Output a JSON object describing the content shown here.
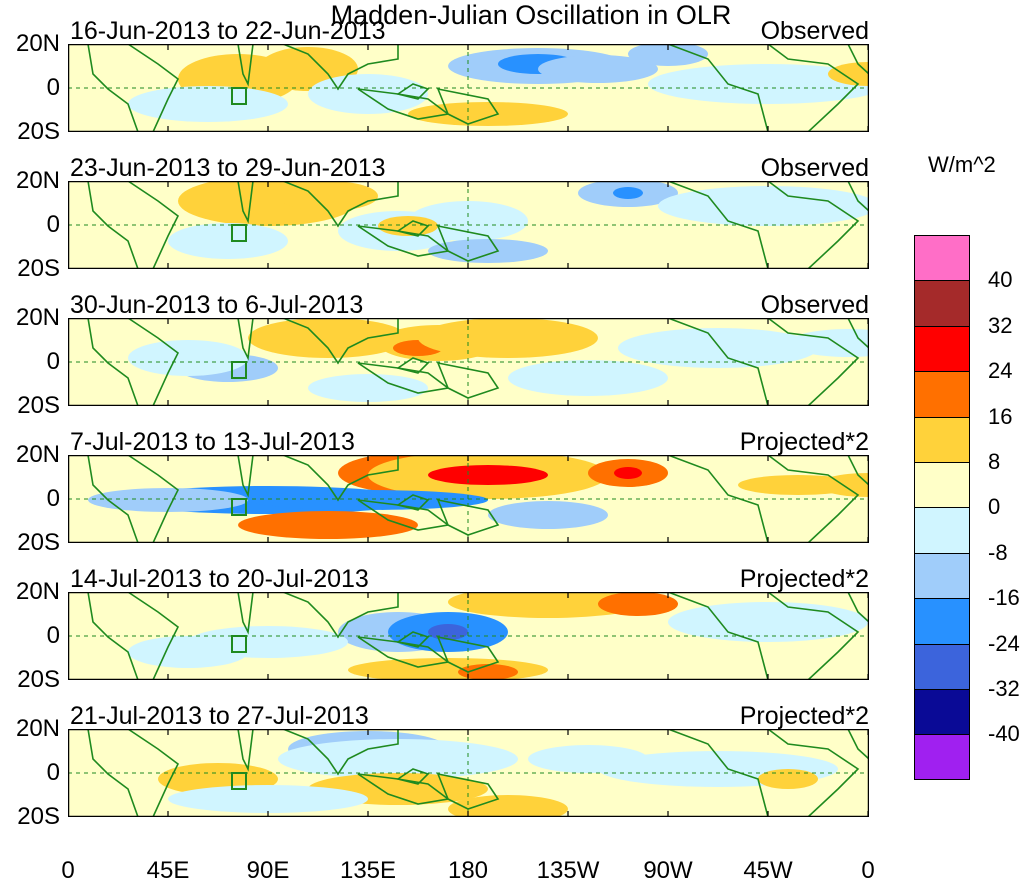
{
  "title": "Madden-Julian Oscillation in OLR",
  "units": "W/m^2",
  "panels": [
    {
      "dates": "16-Jun-2013 to 22-Jun-2013",
      "type": "Observed"
    },
    {
      "dates": "23-Jun-2013 to 29-Jun-2013",
      "type": "Observed"
    },
    {
      "dates": "30-Jun-2013 to 6-Jul-2013",
      "type": "Observed"
    },
    {
      "dates": "7-Jul-2013 to 13-Jul-2013",
      "type": "Projected*2"
    },
    {
      "dates": "14-Jul-2013 to 20-Jul-2013",
      "type": "Projected*2"
    },
    {
      "dates": "21-Jul-2013 to 27-Jul-2013",
      "type": "Projected*2"
    }
  ],
  "lat_labels": [
    "20N",
    "0",
    "20S"
  ],
  "lon_labels": [
    "0",
    "45E",
    "90E",
    "135E",
    "180",
    "135W",
    "90W",
    "45W",
    "0"
  ],
  "colorbar": {
    "labels": [
      "40",
      "32",
      "24",
      "16",
      "8",
      "0",
      "-8",
      "-16",
      "-24",
      "-32",
      "-40"
    ],
    "colors": [
      "#ff6ec7",
      "#a52a2a",
      "#ff0000",
      "#ff7000",
      "#ffd23a",
      "#ffffc8",
      "#d0f5ff",
      "#a0cdfa",
      "#2891ff",
      "#3c64dc",
      "#0a0a96",
      "#a020f0"
    ]
  }
}
